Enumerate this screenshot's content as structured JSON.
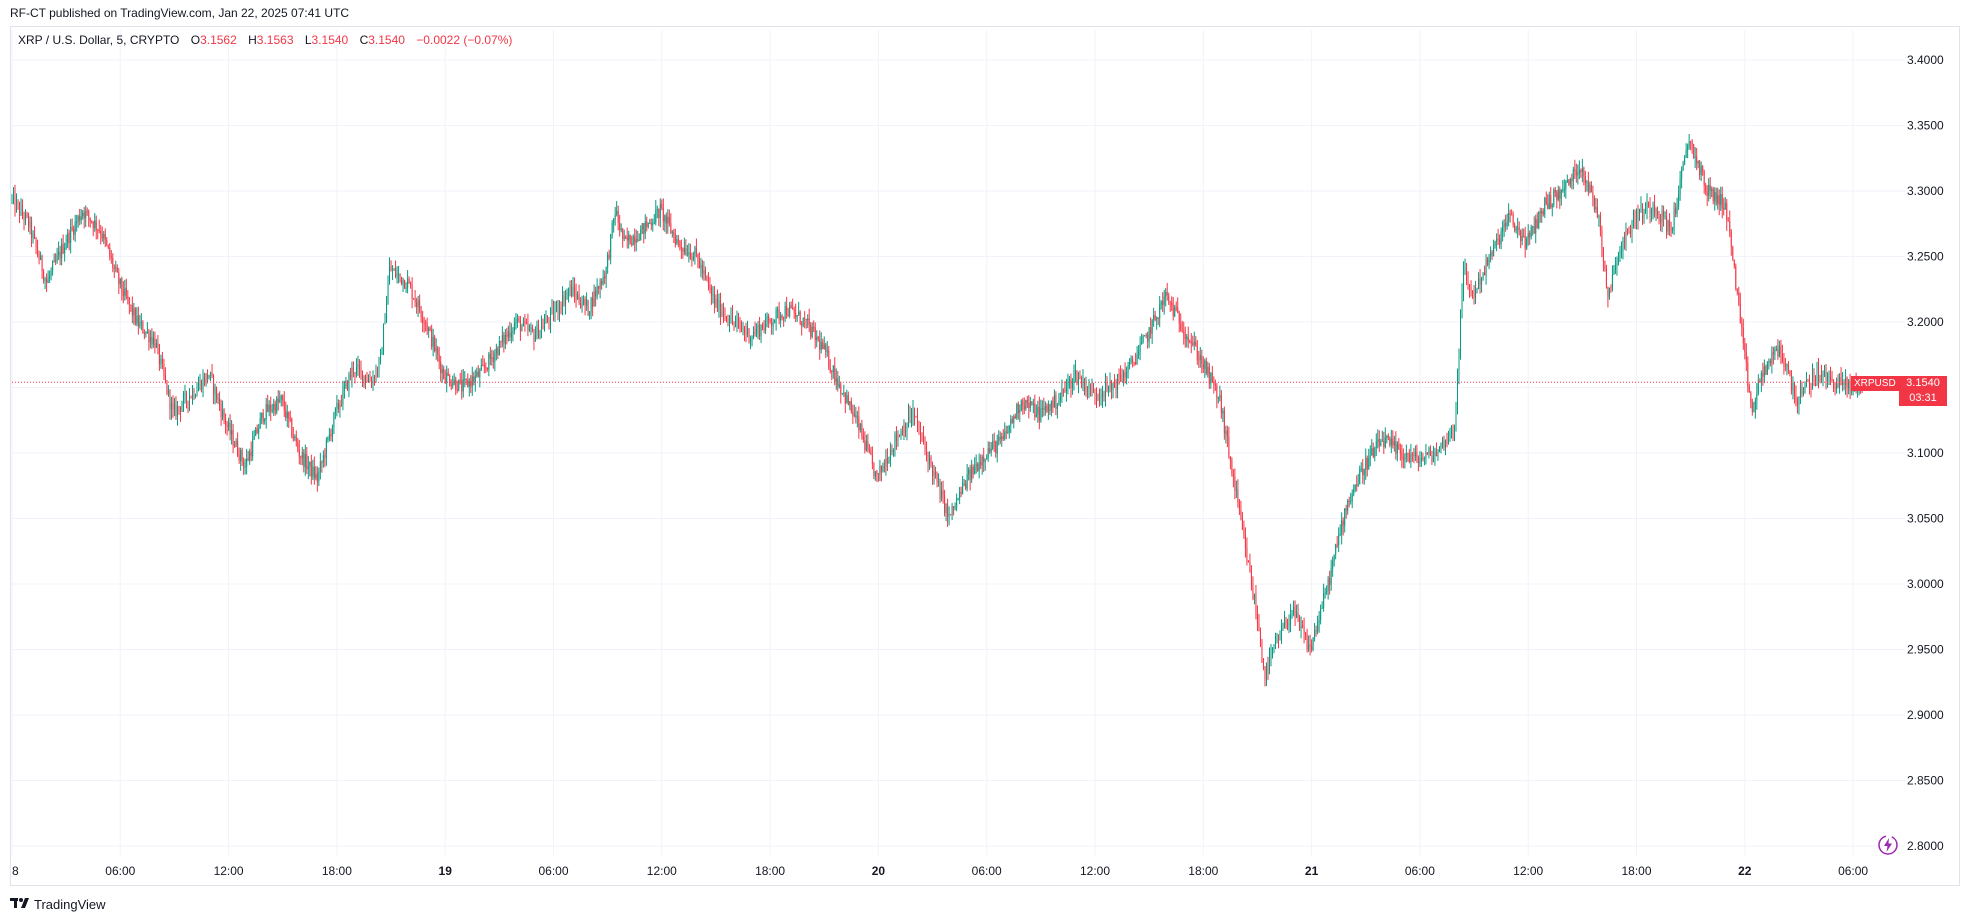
{
  "header": {
    "publisher_line": "RF-CT published on TradingView.com, Jan 22, 2025 07:41 UTC"
  },
  "legend": {
    "symbol": "XRP / U.S. Dollar, 5, CRYPTO",
    "o_label": "O",
    "o_value": "3.1562",
    "h_label": "H",
    "h_value": "3.1563",
    "l_label": "L",
    "l_value": "3.1540",
    "c_label": "C",
    "c_value": "3.1540",
    "change": "−0.0022 (−0.07%)"
  },
  "price_tag": {
    "symbol": "XRPUSD",
    "price": "3.1540",
    "countdown": "03:31"
  },
  "footer": {
    "brand": "TradingView",
    "logo_icon": "tradingview-logo-icon"
  },
  "colors": {
    "up": "#089981",
    "down": "#f23645",
    "grid": "#f0f3fa",
    "last_price_line": "#f23645",
    "flash_icon": "#9c27b0"
  },
  "chart_data": {
    "type": "candlestick",
    "symbol": "XRP / U.S. Dollar",
    "interval": "5",
    "y_ticks": [
      "3.4000",
      "3.3500",
      "3.3000",
      "3.2500",
      "3.2000",
      "3.1500",
      "3.1000",
      "3.0500",
      "3.0000",
      "2.9500",
      "2.9000",
      "2.8500",
      "2.8000"
    ],
    "ylim": [
      2.79,
      3.41
    ],
    "x_ticks": [
      {
        "label": "8",
        "bold": false
      },
      {
        "label": "06:00",
        "bold": false
      },
      {
        "label": "12:00",
        "bold": false
      },
      {
        "label": "18:00",
        "bold": false
      },
      {
        "label": "19",
        "bold": true
      },
      {
        "label": "06:00",
        "bold": false
      },
      {
        "label": "12:00",
        "bold": false
      },
      {
        "label": "18:00",
        "bold": false
      },
      {
        "label": "20",
        "bold": true
      },
      {
        "label": "06:00",
        "bold": false
      },
      {
        "label": "12:00",
        "bold": false
      },
      {
        "label": "18:00",
        "bold": false
      },
      {
        "label": "21",
        "bold": true
      },
      {
        "label": "06:00",
        "bold": false
      },
      {
        "label": "12:00",
        "bold": false
      },
      {
        "label": "18:00",
        "bold": false
      },
      {
        "label": "22",
        "bold": true
      },
      {
        "label": "06:00",
        "bold": false
      }
    ],
    "last_price": 3.154,
    "hours_span": 102.6,
    "path_anchors": [
      [
        0,
        3.295
      ],
      [
        1,
        3.275
      ],
      [
        2,
        3.23
      ],
      [
        3,
        3.26
      ],
      [
        4,
        3.285
      ],
      [
        5,
        3.27
      ],
      [
        6,
        3.23
      ],
      [
        7,
        3.2
      ],
      [
        8,
        3.185
      ],
      [
        9,
        3.13
      ],
      [
        10,
        3.145
      ],
      [
        11,
        3.16
      ],
      [
        12,
        3.12
      ],
      [
        13,
        3.09
      ],
      [
        14,
        3.13
      ],
      [
        15,
        3.14
      ],
      [
        16,
        3.1
      ],
      [
        17,
        3.08
      ],
      [
        18,
        3.13
      ],
      [
        19,
        3.165
      ],
      [
        20,
        3.155
      ],
      [
        20.5,
        3.17
      ],
      [
        21,
        3.24
      ],
      [
        22,
        3.23
      ],
      [
        23,
        3.2
      ],
      [
        24,
        3.16
      ],
      [
        25,
        3.15
      ],
      [
        26,
        3.16
      ],
      [
        27,
        3.18
      ],
      [
        28,
        3.2
      ],
      [
        29,
        3.19
      ],
      [
        30,
        3.205
      ],
      [
        31,
        3.225
      ],
      [
        32,
        3.21
      ],
      [
        33,
        3.24
      ],
      [
        33.5,
        3.285
      ],
      [
        34,
        3.26
      ],
      [
        35,
        3.27
      ],
      [
        36,
        3.285
      ],
      [
        37,
        3.26
      ],
      [
        38,
        3.25
      ],
      [
        39,
        3.215
      ],
      [
        40,
        3.2
      ],
      [
        41,
        3.19
      ],
      [
        42,
        3.2
      ],
      [
        43,
        3.21
      ],
      [
        44,
        3.2
      ],
      [
        45,
        3.18
      ],
      [
        46,
        3.15
      ],
      [
        47,
        3.12
      ],
      [
        48,
        3.08
      ],
      [
        49,
        3.11
      ],
      [
        50,
        3.13
      ],
      [
        51,
        3.09
      ],
      [
        52,
        3.05
      ],
      [
        53,
        3.08
      ],
      [
        54,
        3.1
      ],
      [
        55,
        3.11
      ],
      [
        56,
        3.14
      ],
      [
        57,
        3.13
      ],
      [
        58,
        3.14
      ],
      [
        59,
        3.16
      ],
      [
        60,
        3.145
      ],
      [
        61,
        3.15
      ],
      [
        62,
        3.165
      ],
      [
        63,
        3.19
      ],
      [
        64,
        3.22
      ],
      [
        65,
        3.195
      ],
      [
        66,
        3.17
      ],
      [
        67,
        3.14
      ],
      [
        67.5,
        3.1
      ],
      [
        68,
        3.06
      ],
      [
        68.5,
        3.02
      ],
      [
        69,
        2.98
      ],
      [
        69.5,
        2.93
      ],
      [
        70,
        2.95
      ],
      [
        71,
        2.98
      ],
      [
        72,
        2.95
      ],
      [
        73,
        3.0
      ],
      [
        74,
        3.06
      ],
      [
        75,
        3.09
      ],
      [
        76,
        3.11
      ],
      [
        77,
        3.1
      ],
      [
        78,
        3.095
      ],
      [
        79,
        3.1
      ],
      [
        80,
        3.12
      ],
      [
        80.5,
        3.24
      ],
      [
        81,
        3.22
      ],
      [
        82,
        3.25
      ],
      [
        83,
        3.28
      ],
      [
        84,
        3.26
      ],
      [
        85,
        3.29
      ],
      [
        86,
        3.3
      ],
      [
        87,
        3.32
      ],
      [
        88,
        3.28
      ],
      [
        88.5,
        3.22
      ],
      [
        89,
        3.25
      ],
      [
        90,
        3.28
      ],
      [
        91,
        3.29
      ],
      [
        92,
        3.27
      ],
      [
        93,
        3.34
      ],
      [
        94,
        3.3
      ],
      [
        95,
        3.29
      ],
      [
        95.5,
        3.24
      ],
      [
        96,
        3.18
      ],
      [
        96.5,
        3.13
      ],
      [
        97,
        3.16
      ],
      [
        98,
        3.18
      ],
      [
        99,
        3.14
      ],
      [
        100,
        3.16
      ],
      [
        101,
        3.155
      ],
      [
        102,
        3.15
      ],
      [
        102.6,
        3.154
      ]
    ]
  }
}
